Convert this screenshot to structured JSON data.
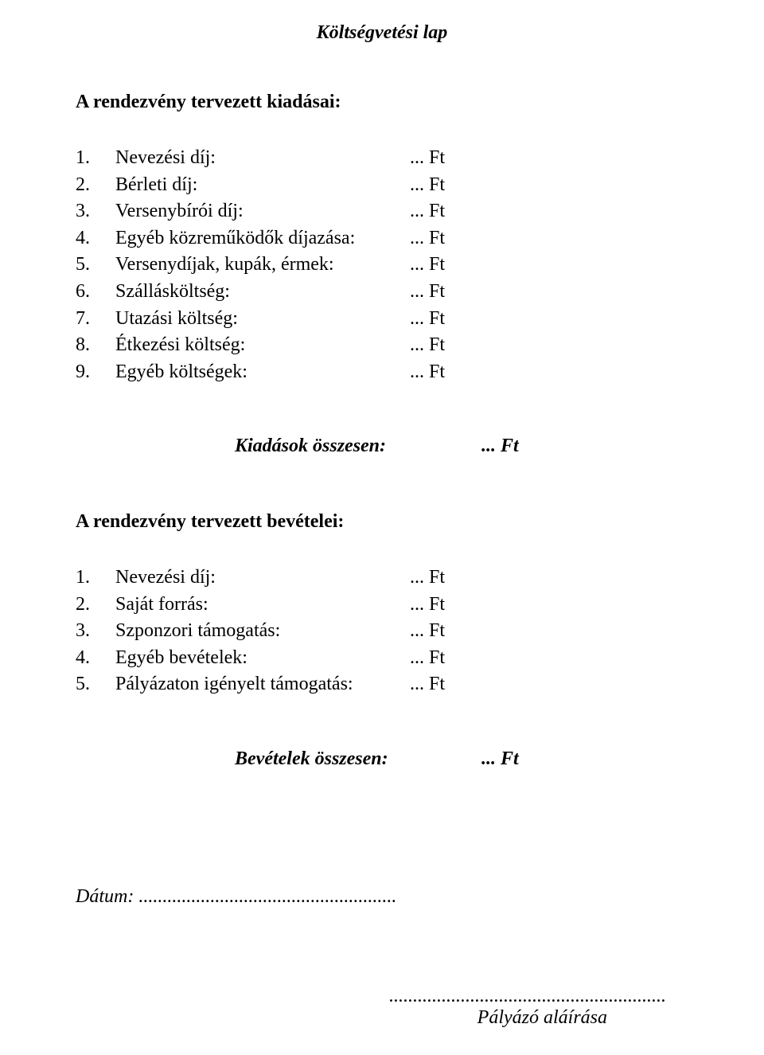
{
  "title": "Költségvetési lap",
  "expenses": {
    "heading": "A rendezvény tervezett kiadásai:",
    "items": [
      {
        "num": "1.",
        "label": "Nevezési díj:",
        "value": "... Ft"
      },
      {
        "num": "2.",
        "label": "Bérleti díj:",
        "value": "... Ft"
      },
      {
        "num": "3.",
        "label": "Versenybírói díj:",
        "value": "... Ft"
      },
      {
        "num": "4.",
        "label": "Egyéb közreműködők díjazása:",
        "value": "... Ft"
      },
      {
        "num": "5.",
        "label": "Versenydíjak, kupák, érmek:",
        "value": "... Ft"
      },
      {
        "num": "6.",
        "label": "Szállásköltség:",
        "value": "... Ft"
      },
      {
        "num": "7.",
        "label": "Utazási költség:",
        "value": "... Ft"
      },
      {
        "num": "8.",
        "label": "Étkezési költség:",
        "value": "... Ft"
      },
      {
        "num": "9.",
        "label": "Egyéb költségek:",
        "value": "... Ft"
      }
    ],
    "total_label": "Kiadások összesen:",
    "total_value": "... Ft"
  },
  "revenues": {
    "heading": "A rendezvény tervezett bevételei:",
    "items": [
      {
        "num": "1.",
        "label": "Nevezési díj:",
        "value": "... Ft"
      },
      {
        "num": "2.",
        "label": "Saját forrás:",
        "value": "... Ft"
      },
      {
        "num": "3.",
        "label": "Szponzori támogatás:",
        "value": "... Ft"
      },
      {
        "num": "4.",
        "label": "Egyéb bevételek:",
        "value": "... Ft"
      },
      {
        "num": "5.",
        "label": "Pályázaton igényelt támogatás:",
        "value": "... Ft"
      }
    ],
    "total_label": "Bevételek összesen:",
    "total_value": "... Ft"
  },
  "date": {
    "label": "Dátum:",
    "dots": "......................................................"
  },
  "signature": {
    "dots": "..........................................................",
    "label": "Pályázó aláírása"
  }
}
